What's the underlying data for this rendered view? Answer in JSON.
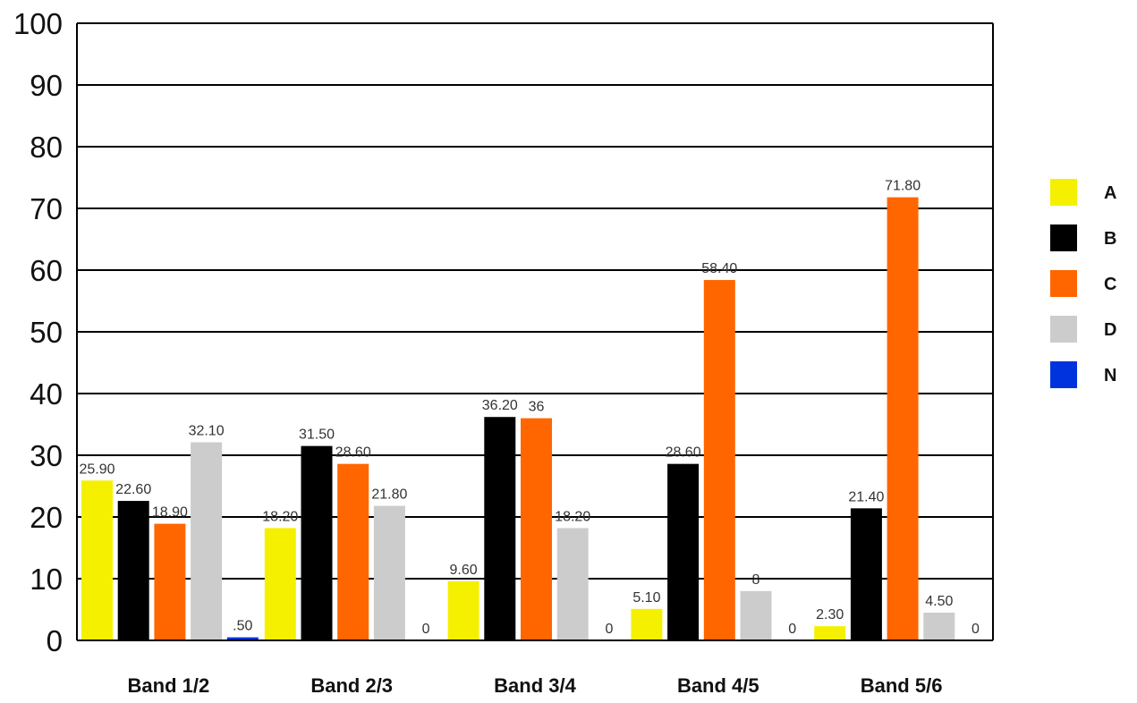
{
  "chart_data": {
    "type": "bar",
    "categories": [
      "Band 1/2",
      "Band 2/3",
      "Band 3/4",
      "Band 4/5",
      "Band 5/6"
    ],
    "series": [
      {
        "name": "A",
        "color": "#f5f000",
        "values": [
          25.9,
          18.2,
          9.6,
          5.1,
          2.3
        ],
        "labels": [
          "25.90",
          "18.20",
          "9.60",
          "5.10",
          "2.30"
        ]
      },
      {
        "name": "B",
        "color": "#000000",
        "values": [
          22.6,
          31.5,
          36.2,
          28.6,
          21.4
        ],
        "labels": [
          "22.60",
          "31.50",
          "36.20",
          "28.60",
          "21.40"
        ]
      },
      {
        "name": "C",
        "color": "#ff6600",
        "values": [
          18.9,
          28.6,
          36,
          58.4,
          71.8
        ],
        "labels": [
          "18.90",
          "28.60",
          "36",
          "58.40",
          "71.80"
        ]
      },
      {
        "name": "D",
        "color": "#cccccc",
        "values": [
          32.1,
          21.8,
          18.2,
          8,
          4.5
        ],
        "labels": [
          "32.10",
          "21.80",
          "18.20",
          "8",
          "4.50"
        ]
      },
      {
        "name": "N",
        "color": "#0033dd",
        "values": [
          0.5,
          0,
          0,
          0,
          0
        ],
        "labels": [
          ".50",
          "0",
          "0",
          "0",
          "0"
        ]
      }
    ],
    "yticks": [
      "0",
      "10",
      "20",
      "30",
      "40",
      "50",
      "60",
      "70",
      "80",
      "90",
      "100"
    ],
    "ylim": [
      0,
      100
    ],
    "grid": true,
    "legend": "right"
  }
}
